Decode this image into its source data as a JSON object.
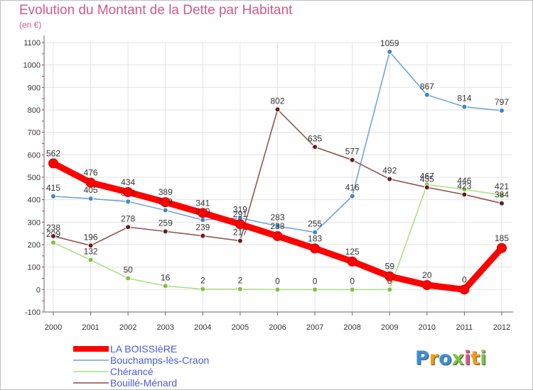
{
  "title": "Evolution du Montant de la Dette par Habitant",
  "subtitle": "(en €)",
  "logo": {
    "text": "Proxiti",
    "colors": [
      "#3a8fd9",
      "#f39c12",
      "#3a8fd9",
      "#7cc242",
      "#e84e8a",
      "#f39c12",
      "#7cc242"
    ]
  },
  "chart_data": {
    "type": "line",
    "x": [
      "2000",
      "2001",
      "2002",
      "2003",
      "2004",
      "2005",
      "2006",
      "2007",
      "2008",
      "2009",
      "2010",
      "2011",
      "2012"
    ],
    "ylim": [
      -100,
      1100
    ],
    "yticks": [
      "-100",
      "0",
      "100",
      "200",
      "300",
      "400",
      "500",
      "600",
      "700",
      "800",
      "900",
      "1000",
      "1100"
    ],
    "grid": true,
    "legend_position": "bottom-left",
    "series": [
      {
        "name": "Bouchamps-lès-Craon",
        "color": "#6a9fd6",
        "marker": "#3d86cc",
        "values": [
          415,
          405,
          392,
          353,
          310,
          319,
          283,
          255,
          416,
          1059,
          867,
          814,
          797
        ],
        "labels": [
          "415",
          "405",
          "392",
          "353",
          "310",
          "319",
          "283",
          "255",
          "416",
          "1059",
          "867",
          "814",
          "797"
        ]
      },
      {
        "name": "Chérancé",
        "color": "#a6e07e",
        "marker": "#7cc242",
        "values": [
          209,
          132,
          50,
          16,
          2,
          2,
          0,
          0,
          0,
          0,
          467,
          446,
          421
        ],
        "labels": [
          "209",
          "132",
          "50",
          "16",
          "2",
          "2",
          "0",
          "0",
          "0",
          "0",
          "467",
          "446",
          "421"
        ]
      },
      {
        "name": "Bouillé-Ménard",
        "color": "#8a4a4a",
        "marker": "#6a1a1a",
        "values": [
          238,
          196,
          278,
          259,
          239,
          217,
          802,
          635,
          577,
          492,
          455,
          423,
          384
        ],
        "labels": [
          "238",
          "196",
          "278",
          "259",
          "239",
          "217",
          "802",
          "635",
          "577",
          "492",
          "455",
          "423",
          "384"
        ]
      },
      {
        "name": "LA BOISSIèRE",
        "color": "#ff0000",
        "marker": "#ff0000",
        "thick": true,
        "values": [
          562,
          476,
          434,
          389,
          341,
          291,
          238,
          183,
          125,
          59,
          20,
          0,
          185
        ],
        "labels": [
          "562",
          "476",
          "434",
          "389",
          "341",
          "291",
          "238",
          "183",
          "125",
          "59",
          "20",
          "0",
          "185"
        ]
      }
    ],
    "legend": [
      "LA BOISSIèRE",
      "Bouchamps-lès-Craon",
      "Chérancé",
      "Bouillé-Ménard"
    ]
  }
}
